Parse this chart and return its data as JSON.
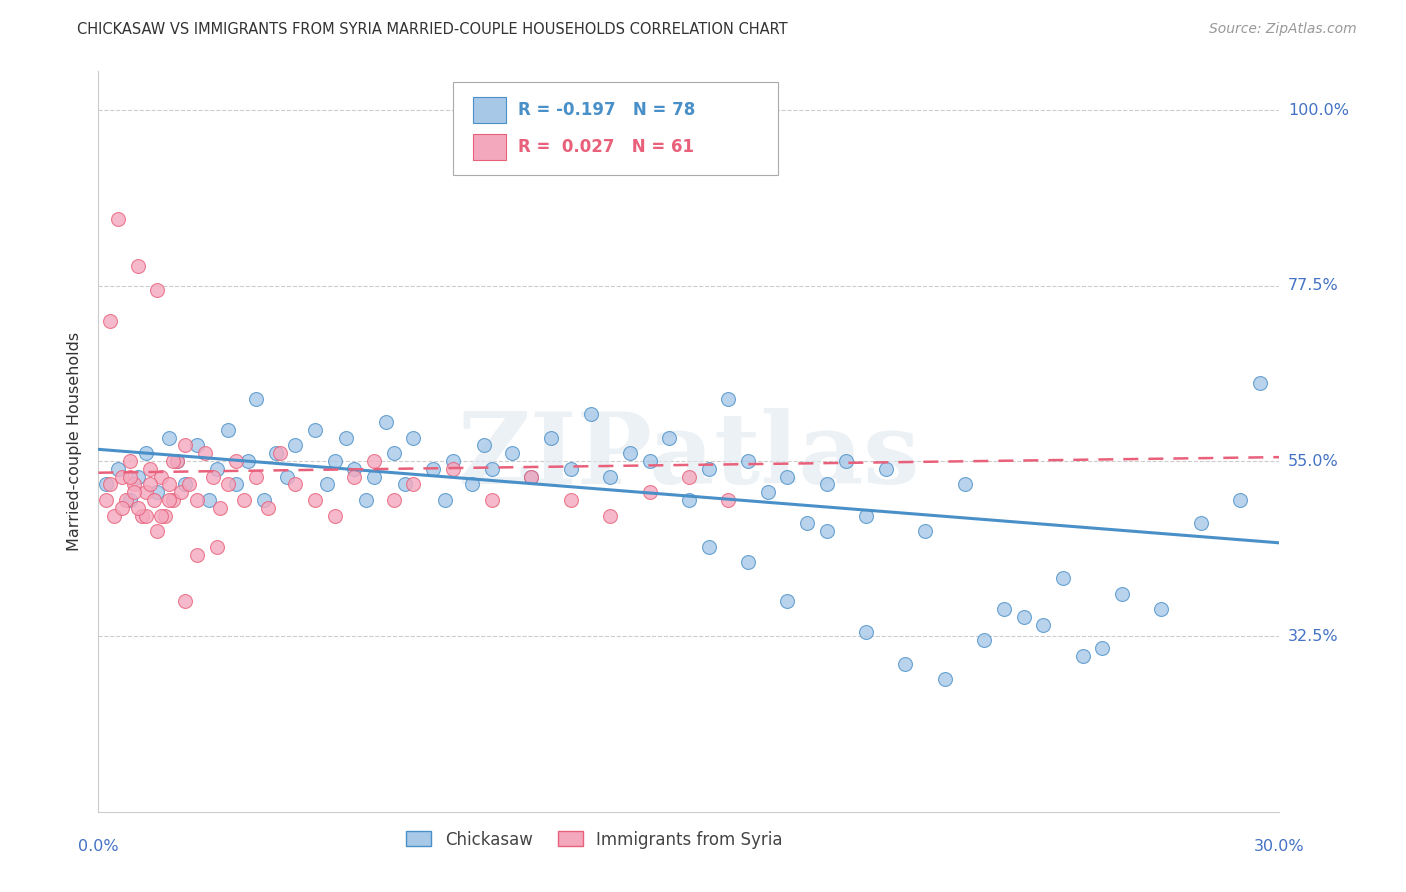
{
  "title": "CHICKASAW VS IMMIGRANTS FROM SYRIA MARRIED-COUPLE HOUSEHOLDS CORRELATION CHART",
  "source": "Source: ZipAtlas.com",
  "ylabel": "Married-couple Households",
  "xlim": [
    0.0,
    0.3
  ],
  "ylim": [
    0.1,
    1.05
  ],
  "ytick_vals": [
    0.325,
    0.55,
    0.775,
    1.0
  ],
  "ytick_labels": [
    "32.5%",
    "55.0%",
    "77.5%",
    "100.0%"
  ],
  "color_blue": "#a8c8e8",
  "color_pink": "#f4a8be",
  "color_blue_line": "#4a90c8",
  "color_pink_line": "#e8607a",
  "color_label": "#4472c4",
  "watermark": "ZIPatlas",
  "blue_trend_y0": 0.565,
  "blue_trend_y1": 0.445,
  "pink_trend_y0": 0.535,
  "pink_trend_y1": 0.555,
  "blue_x": [
    0.002,
    0.005,
    0.008,
    0.01,
    0.012,
    0.015,
    0.018,
    0.02,
    0.022,
    0.025,
    0.028,
    0.03,
    0.033,
    0.035,
    0.038,
    0.04,
    0.042,
    0.045,
    0.048,
    0.05,
    0.055,
    0.058,
    0.06,
    0.063,
    0.065,
    0.068,
    0.07,
    0.073,
    0.075,
    0.078,
    0.08,
    0.085,
    0.088,
    0.09,
    0.095,
    0.098,
    0.1,
    0.105,
    0.11,
    0.115,
    0.12,
    0.125,
    0.13,
    0.135,
    0.14,
    0.145,
    0.15,
    0.155,
    0.16,
    0.165,
    0.17,
    0.175,
    0.18,
    0.185,
    0.19,
    0.195,
    0.2,
    0.21,
    0.22,
    0.23,
    0.24,
    0.25,
    0.26,
    0.27,
    0.28,
    0.29,
    0.295,
    0.155,
    0.165,
    0.175,
    0.185,
    0.195,
    0.205,
    0.215,
    0.225,
    0.235,
    0.245,
    0.255
  ],
  "blue_y": [
    0.52,
    0.54,
    0.5,
    0.53,
    0.56,
    0.51,
    0.58,
    0.55,
    0.52,
    0.57,
    0.5,
    0.54,
    0.59,
    0.52,
    0.55,
    0.63,
    0.5,
    0.56,
    0.53,
    0.57,
    0.59,
    0.52,
    0.55,
    0.58,
    0.54,
    0.5,
    0.53,
    0.6,
    0.56,
    0.52,
    0.58,
    0.54,
    0.5,
    0.55,
    0.52,
    0.57,
    0.54,
    0.56,
    0.53,
    0.58,
    0.54,
    0.61,
    0.53,
    0.56,
    0.55,
    0.58,
    0.5,
    0.54,
    0.63,
    0.55,
    0.51,
    0.53,
    0.47,
    0.52,
    0.55,
    0.48,
    0.54,
    0.46,
    0.52,
    0.36,
    0.34,
    0.3,
    0.38,
    0.36,
    0.47,
    0.5,
    0.65,
    0.44,
    0.42,
    0.37,
    0.46,
    0.33,
    0.29,
    0.27,
    0.32,
    0.35,
    0.4,
    0.31
  ],
  "pink_x": [
    0.002,
    0.003,
    0.004,
    0.005,
    0.006,
    0.007,
    0.008,
    0.009,
    0.01,
    0.011,
    0.012,
    0.013,
    0.014,
    0.015,
    0.016,
    0.017,
    0.018,
    0.019,
    0.02,
    0.021,
    0.022,
    0.023,
    0.025,
    0.027,
    0.029,
    0.031,
    0.033,
    0.035,
    0.037,
    0.04,
    0.043,
    0.046,
    0.05,
    0.055,
    0.06,
    0.065,
    0.07,
    0.075,
    0.08,
    0.09,
    0.1,
    0.11,
    0.12,
    0.13,
    0.14,
    0.15,
    0.16,
    0.003,
    0.006,
    0.009,
    0.012,
    0.015,
    0.018,
    0.008,
    0.01,
    0.013,
    0.016,
    0.019,
    0.022,
    0.025,
    0.03
  ],
  "pink_y": [
    0.5,
    0.52,
    0.48,
    0.86,
    0.53,
    0.5,
    0.55,
    0.52,
    0.8,
    0.48,
    0.51,
    0.54,
    0.5,
    0.77,
    0.53,
    0.48,
    0.52,
    0.5,
    0.55,
    0.51,
    0.57,
    0.52,
    0.5,
    0.56,
    0.53,
    0.49,
    0.52,
    0.55,
    0.5,
    0.53,
    0.49,
    0.56,
    0.52,
    0.5,
    0.48,
    0.53,
    0.55,
    0.5,
    0.52,
    0.54,
    0.5,
    0.53,
    0.5,
    0.48,
    0.51,
    0.53,
    0.5,
    0.73,
    0.49,
    0.51,
    0.48,
    0.46,
    0.5,
    0.53,
    0.49,
    0.52,
    0.48,
    0.55,
    0.37,
    0.43,
    0.44
  ]
}
